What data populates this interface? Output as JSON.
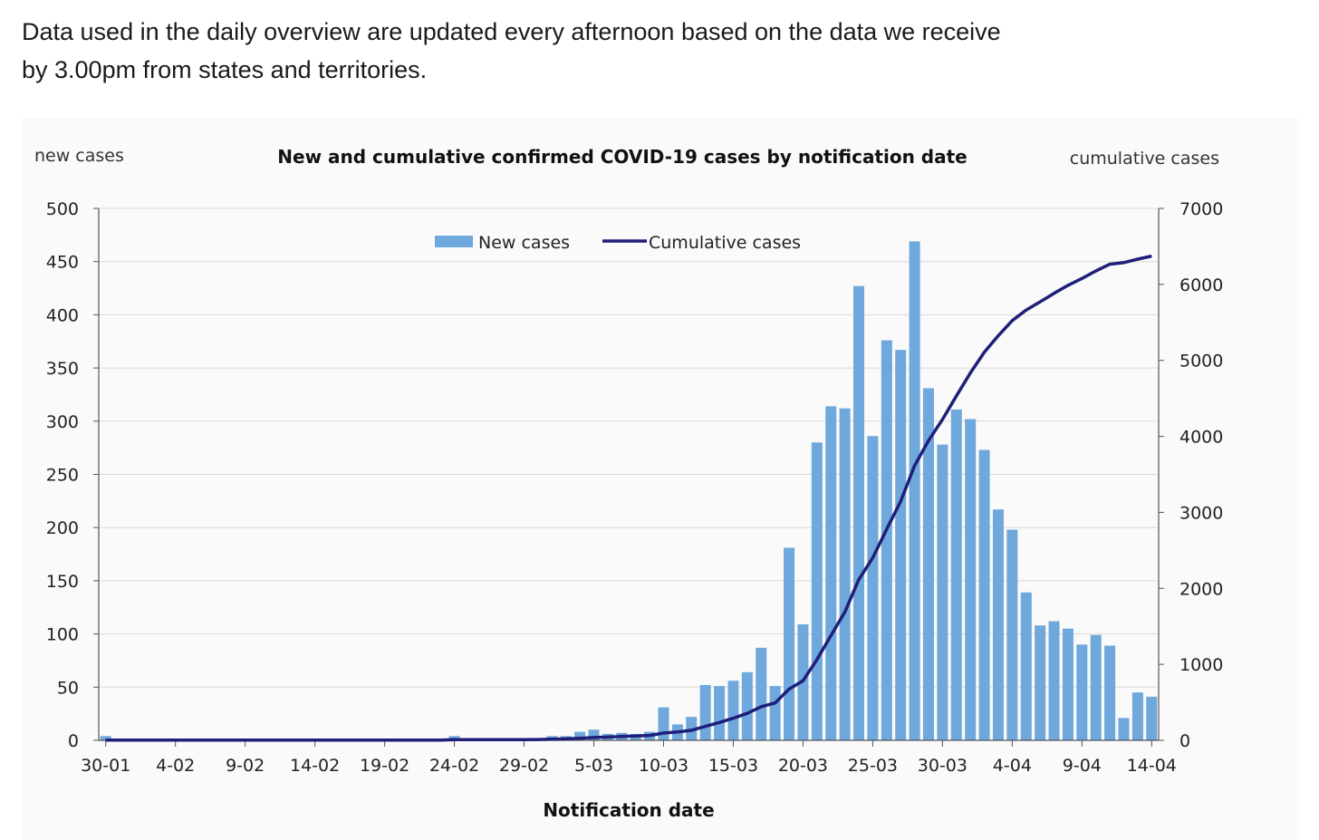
{
  "intro": {
    "line1": "Data used in the daily overview are updated every afternoon based on the data we receive",
    "line2": "by 3.00pm from states and territories."
  },
  "chart_data": {
    "type": "bar",
    "title": "New and cumulative confirmed COVID-19 cases by notification date",
    "xlabel": "Notification date",
    "ylabel_left": "new cases",
    "ylabel_right": "cumulative cases",
    "ylim": [
      0,
      500
    ],
    "ylim_right": [
      0,
      7000
    ],
    "yticks_left": [
      "0",
      "50",
      "100",
      "150",
      "200",
      "250",
      "300",
      "350",
      "400",
      "450",
      "500"
    ],
    "yticks_right": [
      "0",
      "1000",
      "2000",
      "3000",
      "4000",
      "5000",
      "6000",
      "7000"
    ],
    "x_tick_labels": [
      "30-01",
      "4-02",
      "9-02",
      "14-02",
      "19-02",
      "24-02",
      "29-02",
      "5-03",
      "10-03",
      "15-03",
      "20-03",
      "25-03",
      "30-03",
      "4-04",
      "9-04",
      "14-04"
    ],
    "grid": true,
    "legend": "top-center",
    "colors": {
      "new_cases": "#6fa8dc",
      "cumulative": "#1f1f7a",
      "grid": "#d9d9d9",
      "axis": "#555555"
    },
    "x": [
      "30-01",
      "31-01",
      "1-02",
      "2-02",
      "3-02",
      "4-02",
      "5-02",
      "6-02",
      "7-02",
      "8-02",
      "9-02",
      "10-02",
      "11-02",
      "12-02",
      "13-02",
      "14-02",
      "15-02",
      "16-02",
      "17-02",
      "18-02",
      "19-02",
      "20-02",
      "21-02",
      "22-02",
      "23-02",
      "24-02",
      "25-02",
      "26-02",
      "27-02",
      "28-02",
      "29-02",
      "1-03",
      "2-03",
      "3-03",
      "4-03",
      "5-03",
      "6-03",
      "7-03",
      "8-03",
      "9-03",
      "10-03",
      "11-03",
      "12-03",
      "13-03",
      "14-03",
      "15-03",
      "16-03",
      "17-03",
      "18-03",
      "19-03",
      "20-03",
      "21-03",
      "22-03",
      "23-03",
      "24-03",
      "25-03",
      "26-03",
      "27-03",
      "28-03",
      "29-03",
      "30-03",
      "31-03",
      "1-04",
      "2-04",
      "3-04",
      "4-04",
      "5-04",
      "6-04",
      "7-04",
      "8-04",
      "9-04",
      "10-04",
      "11-04",
      "12-04",
      "13-04",
      "14-04"
    ],
    "series": [
      {
        "name": "New cases",
        "type": "bar",
        "values": [
          4,
          0,
          0,
          0,
          0,
          0,
          0,
          0,
          0,
          0,
          0,
          0,
          0,
          0,
          0,
          0,
          0,
          0,
          0,
          0,
          0,
          0,
          0,
          0,
          0,
          4,
          0,
          0,
          0,
          0,
          1,
          2,
          4,
          4,
          8,
          10,
          6,
          7,
          6,
          8,
          31,
          15,
          22,
          52,
          51,
          56,
          64,
          87,
          51,
          181,
          109,
          280,
          314,
          312,
          427,
          286,
          376,
          367,
          469,
          331,
          278,
          311,
          302,
          273,
          217,
          198,
          139,
          108,
          112,
          105,
          90,
          99,
          89,
          21,
          45,
          41
        ]
      },
      {
        "name": "Cumulative cases",
        "type": "line",
        "axis": "right",
        "values": [
          4,
          4,
          4,
          4,
          4,
          4,
          4,
          4,
          4,
          4,
          4,
          4,
          4,
          4,
          4,
          4,
          4,
          4,
          4,
          4,
          4,
          4,
          4,
          4,
          4,
          8,
          8,
          8,
          8,
          8,
          9,
          11,
          15,
          19,
          27,
          37,
          43,
          50,
          56,
          64,
          95,
          110,
          132,
          184,
          235,
          291,
          355,
          442,
          493,
          674,
          783,
          1063,
          1377,
          1689,
          2116,
          2402,
          2778,
          3145,
          3614,
          3945,
          4223,
          4534,
          4836,
          5109,
          5326,
          5524,
          5663,
          5771,
          5883,
          5988,
          6078,
          6177,
          6266,
          6287,
          6332,
          6373
        ]
      }
    ]
  }
}
